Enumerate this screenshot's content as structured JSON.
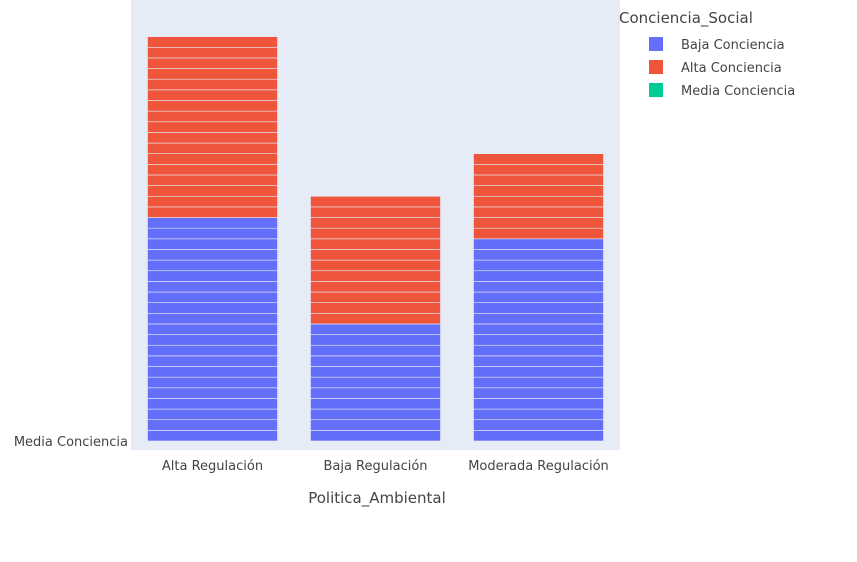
{
  "chart_data": {
    "type": "bar",
    "barmode": "stack",
    "xlabel": "Politica_Ambiental",
    "ylabel": "",
    "categories": [
      "Alta Regulación",
      "Baja Regulación",
      "Moderada Regulación"
    ],
    "y_tick_labels": [
      "Media Conciencia"
    ],
    "series": [
      {
        "name": "Baja Conciencia",
        "color": "#636efa",
        "values": [
          21,
          11,
          19
        ]
      },
      {
        "name": "Alta Conciencia",
        "color": "#ef553b",
        "values": [
          17,
          12,
          8
        ]
      },
      {
        "name": "Media Conciencia",
        "color": "#00cc96",
        "values": [
          0,
          0,
          0
        ]
      }
    ],
    "legend": {
      "title": "Conciencia_Social",
      "position": "top-right"
    },
    "ylim": [
      0,
      39
    ],
    "grid": false,
    "plot_bg": "#e5ecf6"
  }
}
